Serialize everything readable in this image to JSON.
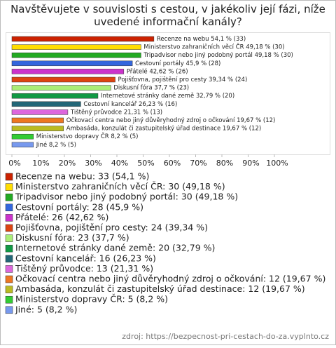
{
  "chart_data": {
    "type": "bar",
    "orientation": "horizontal",
    "title": "Navštěvujete v souvislosti s cestou, v jakékoliv její fázi, níže uvedené informační kanály?",
    "values": [
      54.1,
      49.18,
      49.18,
      45.9,
      42.62,
      39.34,
      37.7,
      32.79,
      26.23,
      21.31,
      19.67,
      19.67,
      8.2,
      8.2
    ],
    "value_labels": [
      "Recenze na webu 54,1 % (33)",
      "Ministerstvo zahraničních věcí ČR 49,18 % (30)",
      "Tripadvisor nebo jiný podobný portál 49,18 % (30)",
      "Cestovní portály 45,9 % (28)",
      "Přátelé 42,62 % (26)",
      "Pojišťovna, pojištění pro cesty 39,34 % (24)",
      "Diskusní fóra 37,7 % (23)",
      "Internetové stránky dané země 32,79 % (20)",
      "Cestovní kancelář 26,23 % (16)",
      "Tištěný průvodce 21,31 % (13)",
      "Očkovací centra nebo jiný důvěryhodný zdroj o očkování 19,67 % (12)",
      "Ambasáda, konzulát či zastupitelský úřad destinace 19,67 % (12)",
      "Ministerstvo dopravy ČR 8,2 % (5)",
      "Jiné 8,2 % (5)"
    ],
    "legend": [
      "Recenze na webu: 33 (54,1 %)",
      "Ministerstvo zahraničních věcí ČR: 30 (49,18 %)",
      "Tripadvisor nebo jiný podobný portál: 30 (49,18 %)",
      "Cestovní portály: 28 (45,9 %)",
      "Přátelé: 26 (42,62 %)",
      "Pojišťovna, pojištění pro cesty: 24 (39,34 %)",
      "Diskusní fóra: 23 (37,7 %)",
      "Internetové stránky dané země: 20 (32,79 %)",
      "Cestovní kancelář: 16 (26,23 %)",
      "Tištěný průvodce: 13 (21,31 %)",
      "Očkovací centra nebo jiný důvěryhodný zdroj o očkování: 12 (19,67 %)",
      "Ambasáda, konzulát či zastupitelský úřad destinace: 12 (19,67 %)",
      "Ministerstvo dopravy ČR: 5 (8,2 %)",
      "Jiné: 5 (8,2 %)"
    ],
    "colors": [
      "#cc2200",
      "#ffdd00",
      "#22aa22",
      "#3366dd",
      "#cc33cc",
      "#dd4411",
      "#aaee77",
      "#119944",
      "#226677",
      "#dd66dd",
      "#ee7722",
      "#bbbb22",
      "#33cc33",
      "#7799ee"
    ],
    "xlim": [
      0,
      100
    ],
    "xticks": [
      {
        "value": 0,
        "label": "0%"
      },
      {
        "value": 10,
        "label": "10%"
      },
      {
        "value": 20,
        "label": "20%"
      },
      {
        "value": 30,
        "label": "30%"
      },
      {
        "value": 40,
        "label": "40%"
      },
      {
        "value": 50,
        "label": "50%"
      },
      {
        "value": 60,
        "label": "60%"
      },
      {
        "value": 70,
        "label": "70%"
      },
      {
        "value": 80,
        "label": "80%"
      },
      {
        "value": 90,
        "label": "90%"
      },
      {
        "value": 100,
        "label": "100%"
      }
    ],
    "source": "zdroj: https://bezpecnost-pri-cestach-do-za.vyplnto.cz"
  }
}
